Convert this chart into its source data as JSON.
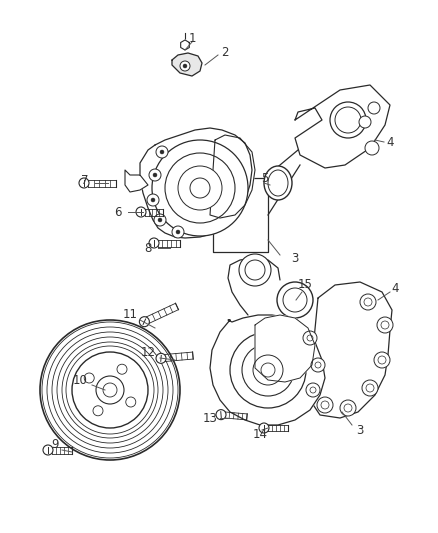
{
  "bg_color": "#ffffff",
  "line_color": "#2a2a2a",
  "label_color": "#333333",
  "fig_width": 4.38,
  "fig_height": 5.33,
  "dpi": 100
}
